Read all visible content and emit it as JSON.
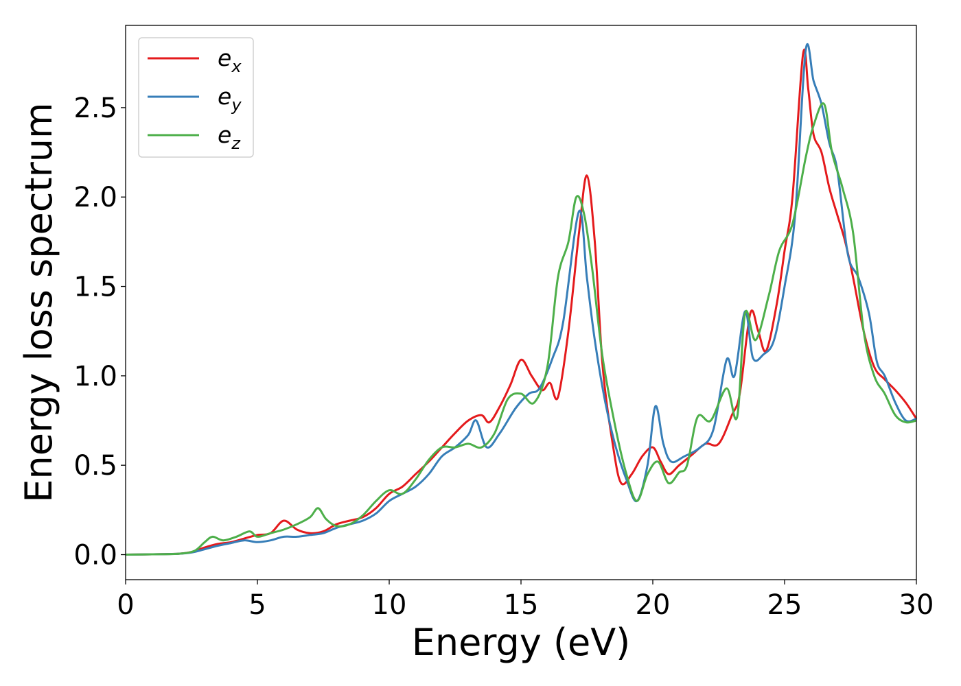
{
  "chart_data": {
    "type": "line",
    "xlabel": "Energy (eV)",
    "ylabel": "Energy loss spectrum",
    "xlim": [
      0,
      30
    ],
    "ylim": [
      -0.14,
      2.96
    ],
    "xticks": [
      0,
      5,
      10,
      15,
      20,
      25,
      30
    ],
    "xtick_labels": [
      "0",
      "5",
      "10",
      "15",
      "20",
      "25",
      "30"
    ],
    "yticks": [
      0.0,
      0.5,
      1.0,
      1.5,
      2.0,
      2.5
    ],
    "ytick_labels": [
      "0.0",
      "0.5",
      "1.0",
      "1.5",
      "2.0",
      "2.5"
    ],
    "grid": false,
    "legend_position": "top-left",
    "series": [
      {
        "name": "e_x",
        "label_base": "e",
        "label_sub": "x",
        "color": "#e41a1c",
        "points": [
          [
            0,
            0
          ],
          [
            1,
            0.002
          ],
          [
            2,
            0.005
          ],
          [
            2.5,
            0.015
          ],
          [
            3,
            0.04
          ],
          [
            3.5,
            0.06
          ],
          [
            4,
            0.07
          ],
          [
            4.5,
            0.09
          ],
          [
            5,
            0.11
          ],
          [
            5.5,
            0.12
          ],
          [
            6,
            0.19
          ],
          [
            6.5,
            0.14
          ],
          [
            7,
            0.12
          ],
          [
            7.5,
            0.13
          ],
          [
            8,
            0.17
          ],
          [
            8.5,
            0.19
          ],
          [
            9,
            0.21
          ],
          [
            9.5,
            0.26
          ],
          [
            10,
            0.34
          ],
          [
            10.5,
            0.38
          ],
          [
            11,
            0.45
          ],
          [
            11.5,
            0.52
          ],
          [
            12,
            0.6
          ],
          [
            12.5,
            0.68
          ],
          [
            13,
            0.75
          ],
          [
            13.5,
            0.78
          ],
          [
            13.8,
            0.74
          ],
          [
            14.2,
            0.83
          ],
          [
            14.6,
            0.95
          ],
          [
            15,
            1.09
          ],
          [
            15.4,
            1.0
          ],
          [
            15.8,
            0.92
          ],
          [
            16.1,
            0.96
          ],
          [
            16.4,
            0.88
          ],
          [
            16.8,
            1.25
          ],
          [
            17.2,
            1.8
          ],
          [
            17.5,
            2.12
          ],
          [
            17.8,
            1.75
          ],
          [
            18.1,
            1.05
          ],
          [
            18.5,
            0.6
          ],
          [
            18.8,
            0.4
          ],
          [
            19.2,
            0.45
          ],
          [
            19.6,
            0.55
          ],
          [
            20,
            0.6
          ],
          [
            20.3,
            0.52
          ],
          [
            20.6,
            0.45
          ],
          [
            21,
            0.5
          ],
          [
            21.5,
            0.56
          ],
          [
            22,
            0.62
          ],
          [
            22.5,
            0.62
          ],
          [
            23,
            0.78
          ],
          [
            23.3,
            0.9
          ],
          [
            23.7,
            1.35
          ],
          [
            24,
            1.25
          ],
          [
            24.3,
            1.14
          ],
          [
            24.7,
            1.4
          ],
          [
            25,
            1.7
          ],
          [
            25.3,
            2.0
          ],
          [
            25.7,
            2.8
          ],
          [
            25.9,
            2.6
          ],
          [
            26.1,
            2.35
          ],
          [
            26.4,
            2.25
          ],
          [
            26.7,
            2.05
          ],
          [
            27,
            1.9
          ],
          [
            27.3,
            1.75
          ],
          [
            27.6,
            1.55
          ],
          [
            28,
            1.25
          ],
          [
            28.4,
            1.05
          ],
          [
            28.8,
            0.98
          ],
          [
            29.2,
            0.92
          ],
          [
            29.6,
            0.85
          ],
          [
            30,
            0.76
          ]
        ]
      },
      {
        "name": "e_y",
        "label_base": "e",
        "label_sub": "y",
        "color": "#377eb8",
        "points": [
          [
            0,
            0
          ],
          [
            1,
            0.002
          ],
          [
            2,
            0.005
          ],
          [
            2.5,
            0.012
          ],
          [
            3,
            0.03
          ],
          [
            3.5,
            0.05
          ],
          [
            4,
            0.065
          ],
          [
            4.5,
            0.08
          ],
          [
            5,
            0.07
          ],
          [
            5.5,
            0.08
          ],
          [
            6,
            0.1
          ],
          [
            6.5,
            0.1
          ],
          [
            7,
            0.11
          ],
          [
            7.5,
            0.12
          ],
          [
            8,
            0.15
          ],
          [
            8.5,
            0.17
          ],
          [
            9,
            0.19
          ],
          [
            9.5,
            0.23
          ],
          [
            10,
            0.3
          ],
          [
            10.5,
            0.34
          ],
          [
            11,
            0.38
          ],
          [
            11.5,
            0.45
          ],
          [
            12,
            0.55
          ],
          [
            12.5,
            0.6
          ],
          [
            13,
            0.67
          ],
          [
            13.3,
            0.75
          ],
          [
            13.7,
            0.6
          ],
          [
            14.2,
            0.68
          ],
          [
            14.8,
            0.82
          ],
          [
            15.3,
            0.9
          ],
          [
            15.7,
            0.93
          ],
          [
            16.2,
            1.1
          ],
          [
            16.6,
            1.3
          ],
          [
            17.2,
            1.92
          ],
          [
            17.5,
            1.55
          ],
          [
            17.8,
            1.2
          ],
          [
            18.2,
            0.85
          ],
          [
            18.6,
            0.6
          ],
          [
            19,
            0.42
          ],
          [
            19.4,
            0.3
          ],
          [
            19.8,
            0.5
          ],
          [
            20.1,
            0.83
          ],
          [
            20.4,
            0.62
          ],
          [
            20.7,
            0.52
          ],
          [
            21.2,
            0.55
          ],
          [
            21.8,
            0.6
          ],
          [
            22.3,
            0.7
          ],
          [
            22.8,
            1.09
          ],
          [
            23.1,
            1.0
          ],
          [
            23.5,
            1.36
          ],
          [
            23.8,
            1.1
          ],
          [
            24.2,
            1.12
          ],
          [
            24.6,
            1.2
          ],
          [
            25,
            1.5
          ],
          [
            25.4,
            1.9
          ],
          [
            25.8,
            2.82
          ],
          [
            26.1,
            2.65
          ],
          [
            26.4,
            2.52
          ],
          [
            26.7,
            2.3
          ],
          [
            27,
            2.15
          ],
          [
            27.4,
            1.68
          ],
          [
            27.8,
            1.55
          ],
          [
            28.2,
            1.35
          ],
          [
            28.5,
            1.08
          ],
          [
            28.8,
            1.0
          ],
          [
            29.2,
            0.85
          ],
          [
            29.6,
            0.75
          ],
          [
            30,
            0.76
          ]
        ]
      },
      {
        "name": "e_z",
        "label_base": "e",
        "label_sub": "z",
        "color": "#4daf4a",
        "points": [
          [
            0,
            0
          ],
          [
            1,
            0.002
          ],
          [
            2,
            0.005
          ],
          [
            2.6,
            0.02
          ],
          [
            3,
            0.07
          ],
          [
            3.3,
            0.1
          ],
          [
            3.7,
            0.08
          ],
          [
            4.2,
            0.1
          ],
          [
            4.7,
            0.13
          ],
          [
            5,
            0.1
          ],
          [
            5.5,
            0.12
          ],
          [
            6,
            0.14
          ],
          [
            6.5,
            0.17
          ],
          [
            7,
            0.21
          ],
          [
            7.3,
            0.26
          ],
          [
            7.6,
            0.2
          ],
          [
            8,
            0.16
          ],
          [
            8.5,
            0.17
          ],
          [
            9,
            0.22
          ],
          [
            9.5,
            0.3
          ],
          [
            10,
            0.36
          ],
          [
            10.5,
            0.34
          ],
          [
            11,
            0.42
          ],
          [
            11.5,
            0.53
          ],
          [
            12,
            0.6
          ],
          [
            12.5,
            0.6
          ],
          [
            13,
            0.62
          ],
          [
            13.5,
            0.6
          ],
          [
            14,
            0.68
          ],
          [
            14.5,
            0.87
          ],
          [
            15,
            0.9
          ],
          [
            15.5,
            0.85
          ],
          [
            16,
            1.05
          ],
          [
            16.4,
            1.55
          ],
          [
            16.8,
            1.75
          ],
          [
            17.1,
            2.0
          ],
          [
            17.4,
            1.9
          ],
          [
            17.7,
            1.6
          ],
          [
            18.1,
            1.1
          ],
          [
            18.6,
            0.7
          ],
          [
            19,
            0.45
          ],
          [
            19.4,
            0.3
          ],
          [
            19.8,
            0.45
          ],
          [
            20.2,
            0.52
          ],
          [
            20.6,
            0.4
          ],
          [
            21,
            0.46
          ],
          [
            21.3,
            0.5
          ],
          [
            21.7,
            0.77
          ],
          [
            22.2,
            0.75
          ],
          [
            22.8,
            0.93
          ],
          [
            23.2,
            0.77
          ],
          [
            23.5,
            1.35
          ],
          [
            23.9,
            1.2
          ],
          [
            24.4,
            1.45
          ],
          [
            24.8,
            1.7
          ],
          [
            25.3,
            1.85
          ],
          [
            25.8,
            2.22
          ],
          [
            26.1,
            2.4
          ],
          [
            26.5,
            2.52
          ],
          [
            26.8,
            2.25
          ],
          [
            27.2,
            2.05
          ],
          [
            27.6,
            1.8
          ],
          [
            28,
            1.25
          ],
          [
            28.4,
            1.0
          ],
          [
            28.8,
            0.9
          ],
          [
            29.2,
            0.78
          ],
          [
            29.6,
            0.74
          ],
          [
            30,
            0.75
          ]
        ]
      }
    ]
  }
}
